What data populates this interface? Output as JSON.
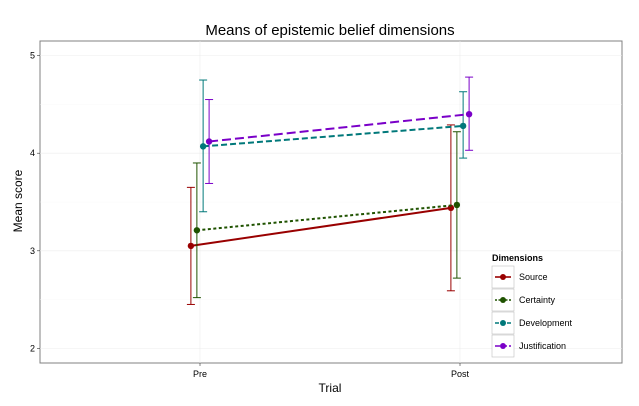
{
  "chart_data": {
    "type": "line",
    "title": "Means of epistemic belief dimensions",
    "xlabel": "Trial",
    "ylabel": "Mean score",
    "categories": [
      "Pre",
      "Post"
    ],
    "ylim": [
      1.85,
      5.15
    ],
    "yticks": [
      2,
      3,
      4,
      5
    ],
    "grid": true,
    "legend": {
      "title": "Dimensions",
      "position": "bottom-right"
    },
    "series": [
      {
        "name": "Source",
        "color": "#990000",
        "dash": "solid",
        "dodge": -0.035,
        "values": [
          3.05,
          3.44
        ],
        "lower": [
          2.45,
          2.59
        ],
        "upper": [
          3.65,
          4.29
        ]
      },
      {
        "name": "Certainty",
        "color": "#1f5200",
        "dash": "dotted",
        "dodge": -0.012,
        "values": [
          3.21,
          3.47
        ],
        "lower": [
          2.52,
          2.72
        ],
        "upper": [
          3.9,
          4.22
        ]
      },
      {
        "name": "Development",
        "color": "#00787a",
        "dash": "dashed",
        "dodge": 0.012,
        "values": [
          4.07,
          4.28
        ],
        "lower": [
          3.4,
          3.95
        ],
        "upper": [
          4.75,
          4.63
        ]
      },
      {
        "name": "Justification",
        "color": "#7a00c8",
        "dash": "longdash",
        "dodge": 0.035,
        "values": [
          4.12,
          4.4
        ],
        "lower": [
          3.69,
          4.03
        ],
        "upper": [
          4.55,
          4.78
        ]
      }
    ]
  }
}
